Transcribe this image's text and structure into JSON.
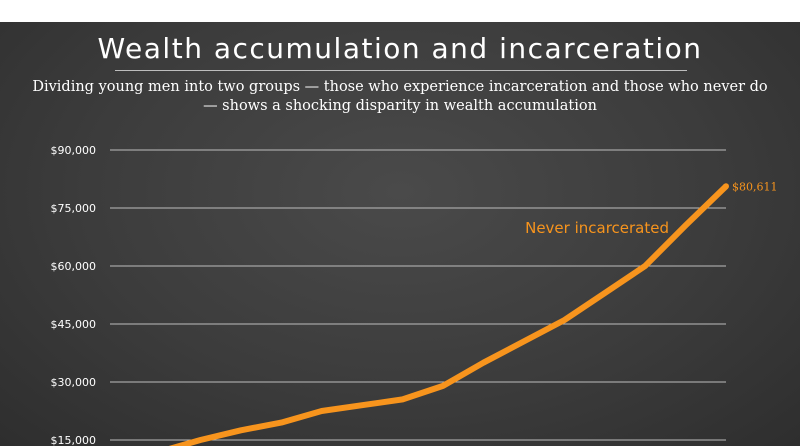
{
  "header": {
    "title": "Wealth accumulation and incarceration",
    "subtitle": "Dividing young men into two groups — those who experience incarceration and those who never do — shows a shocking disparity in wealth accumulation"
  },
  "colors": {
    "series": "#f7941d",
    "grid": "#bdbdbd",
    "text": "#ffffff"
  },
  "chart_data": {
    "type": "line",
    "title": "Wealth accumulation and incarceration",
    "subtitle": "Dividing young men into two groups — those who experience incarceration and those who never do — shows a shocking disparity in wealth accumulation",
    "ylim": [
      15000,
      90000
    ],
    "yticks": [
      15000,
      30000,
      45000,
      60000,
      75000,
      90000
    ],
    "ytick_labels": [
      "$15,000",
      "$30,000",
      "$45,000",
      "$60,000",
      "$75,000",
      "$90,000"
    ],
    "grid": true,
    "series": [
      {
        "name": "Never incarcerated",
        "values": [
          12000,
          15000,
          17500,
          19500,
          22500,
          24000,
          25500,
          29000,
          35000,
          40500,
          46000,
          53000,
          60000,
          70500,
          80611
        ],
        "end_label": "$80,611"
      }
    ]
  }
}
